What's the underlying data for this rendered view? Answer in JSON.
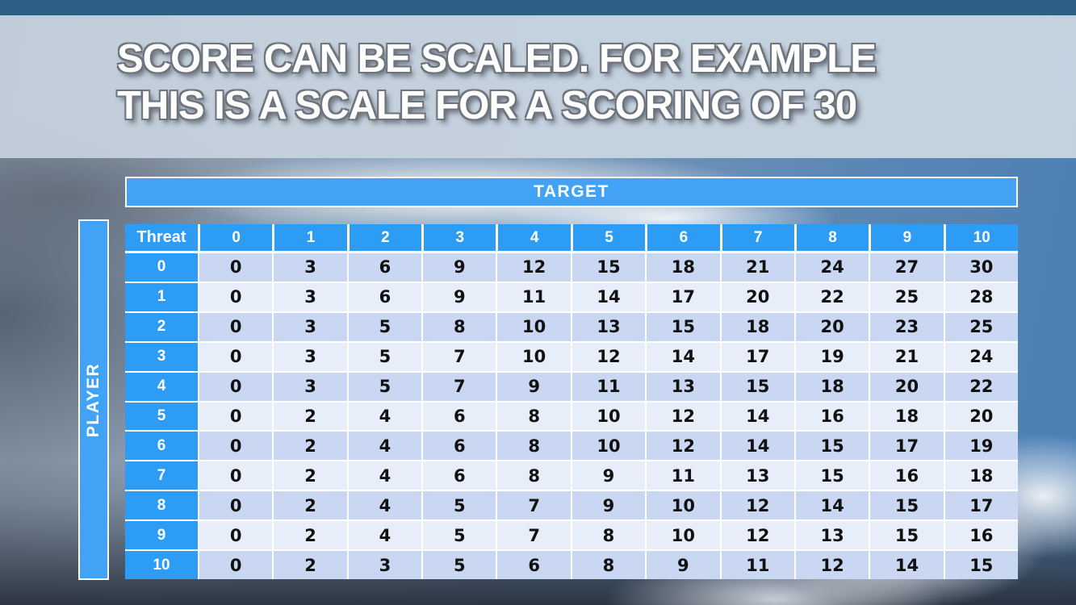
{
  "slide": {
    "title_line1": "SCORE CAN BE SCALED. FOR EXAMPLE",
    "title_line2": "THIS IS A SCALE FOR A SCORING OF 30"
  },
  "table": {
    "target_label": "TARGET",
    "player_label": "PLAYER",
    "corner_label": "Threat",
    "column_headers": [
      "0",
      "1",
      "2",
      "3",
      "4",
      "5",
      "6",
      "7",
      "8",
      "9",
      "10"
    ],
    "row_headers": [
      "0",
      "1",
      "2",
      "3",
      "4",
      "5",
      "6",
      "7",
      "8",
      "9",
      "10"
    ]
  },
  "chart_data": {
    "type": "table",
    "title": "Scale for a scoring of 30",
    "x_axis_label": "TARGET",
    "y_axis_label": "PLAYER",
    "corner_label": "Threat",
    "columns": [
      0,
      1,
      2,
      3,
      4,
      5,
      6,
      7,
      8,
      9,
      10
    ],
    "rows": [
      0,
      1,
      2,
      3,
      4,
      5,
      6,
      7,
      8,
      9,
      10
    ],
    "values": [
      [
        0,
        3,
        6,
        9,
        12,
        15,
        18,
        21,
        24,
        27,
        30
      ],
      [
        0,
        3,
        6,
        9,
        11,
        14,
        17,
        20,
        22,
        25,
        28
      ],
      [
        0,
        3,
        5,
        8,
        10,
        13,
        15,
        18,
        20,
        23,
        25
      ],
      [
        0,
        3,
        5,
        7,
        10,
        12,
        14,
        17,
        19,
        21,
        24
      ],
      [
        0,
        3,
        5,
        7,
        9,
        11,
        13,
        15,
        18,
        20,
        22
      ],
      [
        0,
        2,
        4,
        6,
        8,
        10,
        12,
        14,
        16,
        18,
        20
      ],
      [
        0,
        2,
        4,
        6,
        8,
        10,
        12,
        14,
        15,
        17,
        19
      ],
      [
        0,
        2,
        4,
        6,
        8,
        9,
        11,
        13,
        15,
        16,
        18
      ],
      [
        0,
        2,
        4,
        5,
        7,
        9,
        10,
        12,
        14,
        15,
        17
      ],
      [
        0,
        2,
        4,
        5,
        7,
        8,
        10,
        12,
        13,
        15,
        16
      ],
      [
        0,
        2,
        3,
        5,
        6,
        8,
        9,
        11,
        12,
        14,
        15
      ]
    ]
  },
  "colors": {
    "top_bar": "#2E5D86",
    "title_band": "#C8D4DF",
    "band_blue": "#42A3F6",
    "header_blue": "#2D9CF4",
    "row_stripe_dark": "#C9D7F2",
    "row_stripe_light": "#E8EDFA",
    "cell_text": "#111111",
    "title_text": "#FFFFFF"
  }
}
